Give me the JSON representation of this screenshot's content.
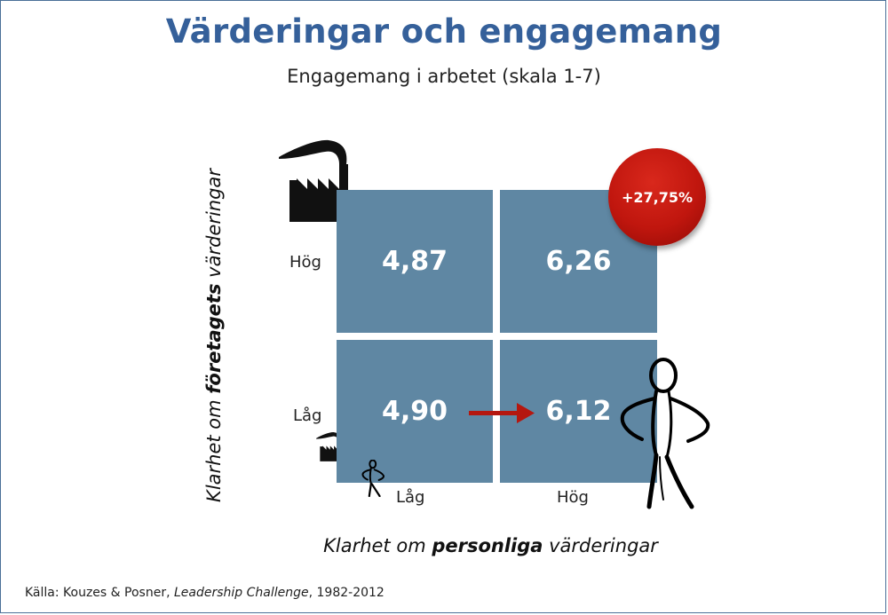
{
  "title": "Värderingar och engagemang",
  "subtitle": "Engagemang i arbetet (skala 1-7)",
  "y_axis": {
    "prefix": "Klarhet om ",
    "emphasis": "företagets",
    "suffix": " värderingar"
  },
  "x_axis": {
    "prefix": "Klarhet om ",
    "emphasis": "personliga",
    "suffix": " värderingar"
  },
  "y_levels": {
    "high": "Hög",
    "low": "Låg"
  },
  "x_levels": {
    "low": "Låg",
    "high": "Hög"
  },
  "cells": {
    "high_low": "4,87",
    "high_high": "6,26",
    "low_low": "4,90",
    "low_high": "6,12"
  },
  "badge": "+27,75%",
  "source": {
    "prefix": "Källa: Kouzes & Posner, ",
    "work": "Leadership Challenge",
    "suffix": ", 1982-2012"
  },
  "colors": {
    "title": "#35609a",
    "cell": "#5f87a3",
    "arrow": "#b5170f",
    "badge": "#c0160e"
  },
  "icons": [
    "factory-large-icon",
    "factory-small-icon",
    "stick-figure-large-icon",
    "stick-figure-small-icon",
    "arrow-right-icon"
  ]
}
